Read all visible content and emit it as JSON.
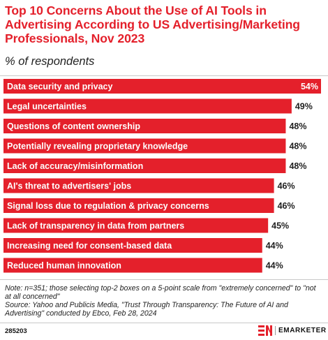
{
  "title": "Top 10 Concerns About the Use of AI Tools in Advertising According to US Advertising/Marketing Professionals, Nov 2023",
  "subtitle": "% of respondents",
  "chart_data": {
    "type": "bar",
    "orientation": "horizontal",
    "categories": [
      "Data security and privacy",
      "Legal uncertainties",
      "Questions of content ownership",
      "Potentially revealing proprietary knowledge",
      "Lack of accuracy/misinformation",
      "AI's threat to advertisers' jobs",
      "Signal loss due to regulation & privacy concerns",
      "Lack of transparency in data from partners",
      "Increasing need for consent-based data",
      "Reduced human innovation"
    ],
    "values": [
      54,
      49,
      48,
      48,
      48,
      46,
      46,
      45,
      44,
      44
    ],
    "value_labels": [
      "54%",
      "49%",
      "48%",
      "48%",
      "48%",
      "46%",
      "46%",
      "45%",
      "44%",
      "44%"
    ],
    "xlim": [
      0,
      54
    ],
    "bar_color": "#e4202b",
    "grid": false
  },
  "footer": {
    "note": "Note: n=351; those selecting top-2 boxes on a 5-point scale from \"extremely concerned\" to \"not at all concerned\"",
    "source": "Source: Yahoo and Publicis Media, \"Trust Through Transparency: The Future of AI and Advertising\" conducted by Ebco, Feb 28, 2024",
    "chart_id": "285203",
    "brand": "EMARKETER",
    "brand_color": "#e4202b"
  }
}
